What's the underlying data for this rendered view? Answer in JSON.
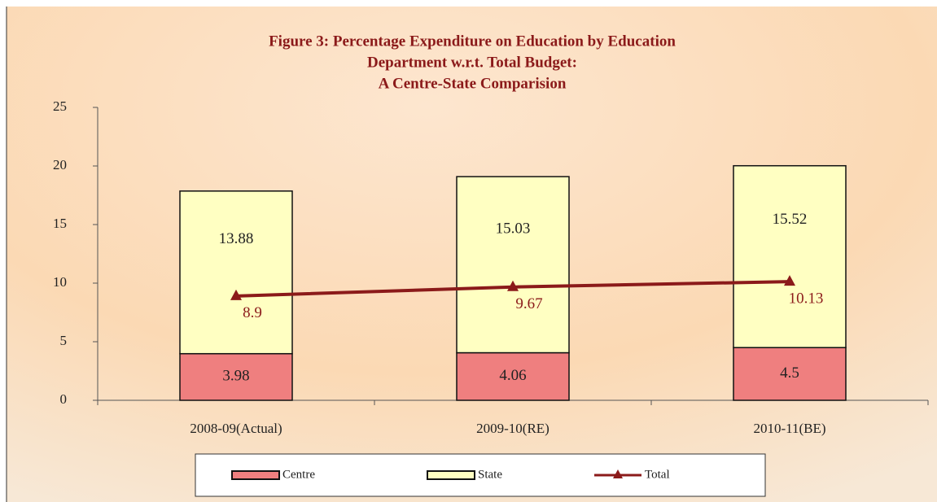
{
  "chart_data": {
    "type": "stacked_bar_line",
    "title": [
      "Figure 3: Percentage Expenditure on Education by Education",
      "Department w.r.t. Total Budget:",
      "A Centre-State Comparision"
    ],
    "categories": [
      "2008-09(Actual)",
      "2009-10(RE)",
      "2010-11(BE)"
    ],
    "series": [
      {
        "name": "Centre",
        "color": "#ef7f7f",
        "type": "bar",
        "values": [
          3.98,
          4.06,
          4.5
        ]
      },
      {
        "name": "State",
        "color": "#ffffc2",
        "type": "bar",
        "values": [
          13.88,
          15.03,
          15.52
        ]
      },
      {
        "name": "Total",
        "color": "#8b1a1a",
        "type": "line",
        "values": [
          8.9,
          9.67,
          10.13
        ]
      }
    ],
    "ylim": [
      0,
      25
    ],
    "yticks": [
      0,
      5,
      10,
      15,
      20,
      25
    ],
    "legend": "bottom"
  }
}
